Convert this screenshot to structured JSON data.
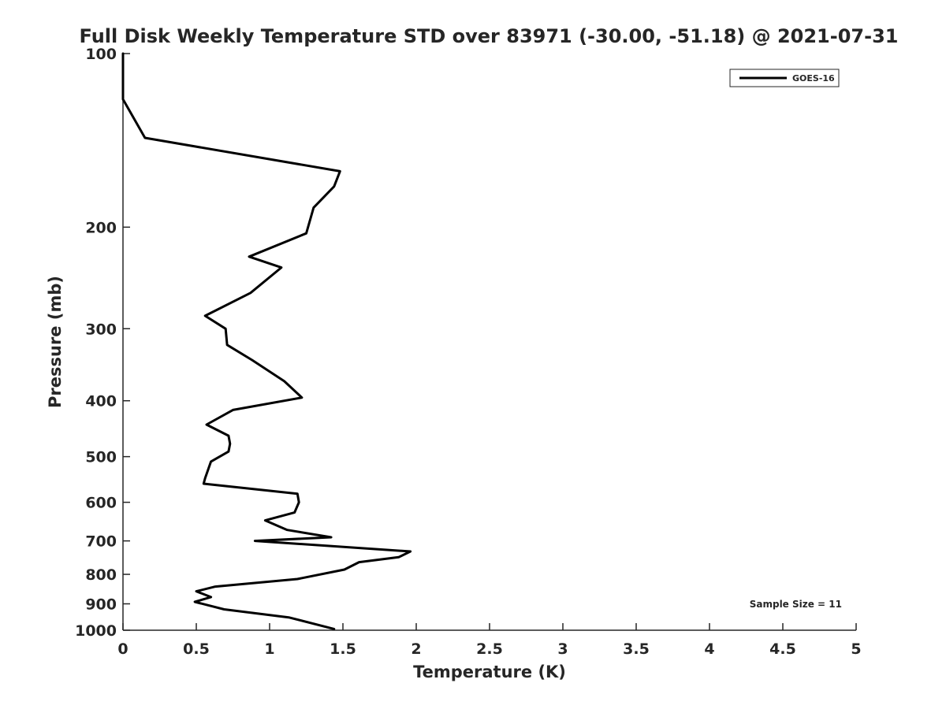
{
  "chart_data": {
    "type": "line",
    "title": "Full Disk Weekly Temperature STD over 83971 (-30.00, -51.18) @ 2021-07-31",
    "xlabel": "Temperature (K)",
    "ylabel": "Pressure (mb)",
    "xlim": [
      0,
      5
    ],
    "ylim": [
      100,
      1000
    ],
    "y_scale": "log",
    "y_reversed": true,
    "x_ticks": [
      "0",
      "0.5",
      "1",
      "1.5",
      "2",
      "2.5",
      "3",
      "3.5",
      "4",
      "4.5",
      "5"
    ],
    "y_ticks": [
      "100",
      "200",
      "300",
      "400",
      "500",
      "600",
      "700",
      "800",
      "900",
      "1000"
    ],
    "grid": false,
    "legend_position": "top-right",
    "series": [
      {
        "name": "GOES-16",
        "color": "#000000",
        "x": [
          0.0,
          0.0,
          0.15,
          1.48,
          1.44,
          1.3,
          1.25,
          0.86,
          1.08,
          0.87,
          0.56,
          0.7,
          0.71,
          0.88,
          1.1,
          1.22,
          0.75,
          0.57,
          0.72,
          0.73,
          0.72,
          0.6,
          0.56,
          0.55,
          1.19,
          1.2,
          1.17,
          0.97,
          1.12,
          1.42,
          0.9,
          1.96,
          1.88,
          1.61,
          1.51,
          1.19,
          0.63,
          0.5,
          0.6,
          0.49,
          0.69,
          1.13,
          1.44
        ],
        "y": [
          100,
          120,
          140,
          160,
          170,
          185,
          205,
          225,
          235,
          260,
          285,
          300,
          320,
          340,
          370,
          395,
          415,
          440,
          460,
          475,
          490,
          510,
          545,
          557,
          580,
          600,
          625,
          645,
          670,
          690,
          700,
          730,
          747,
          762,
          785,
          815,
          840,
          856,
          876,
          893,
          920,
          950,
          995
        ]
      }
    ],
    "annotation": "Sample Size = 11"
  }
}
